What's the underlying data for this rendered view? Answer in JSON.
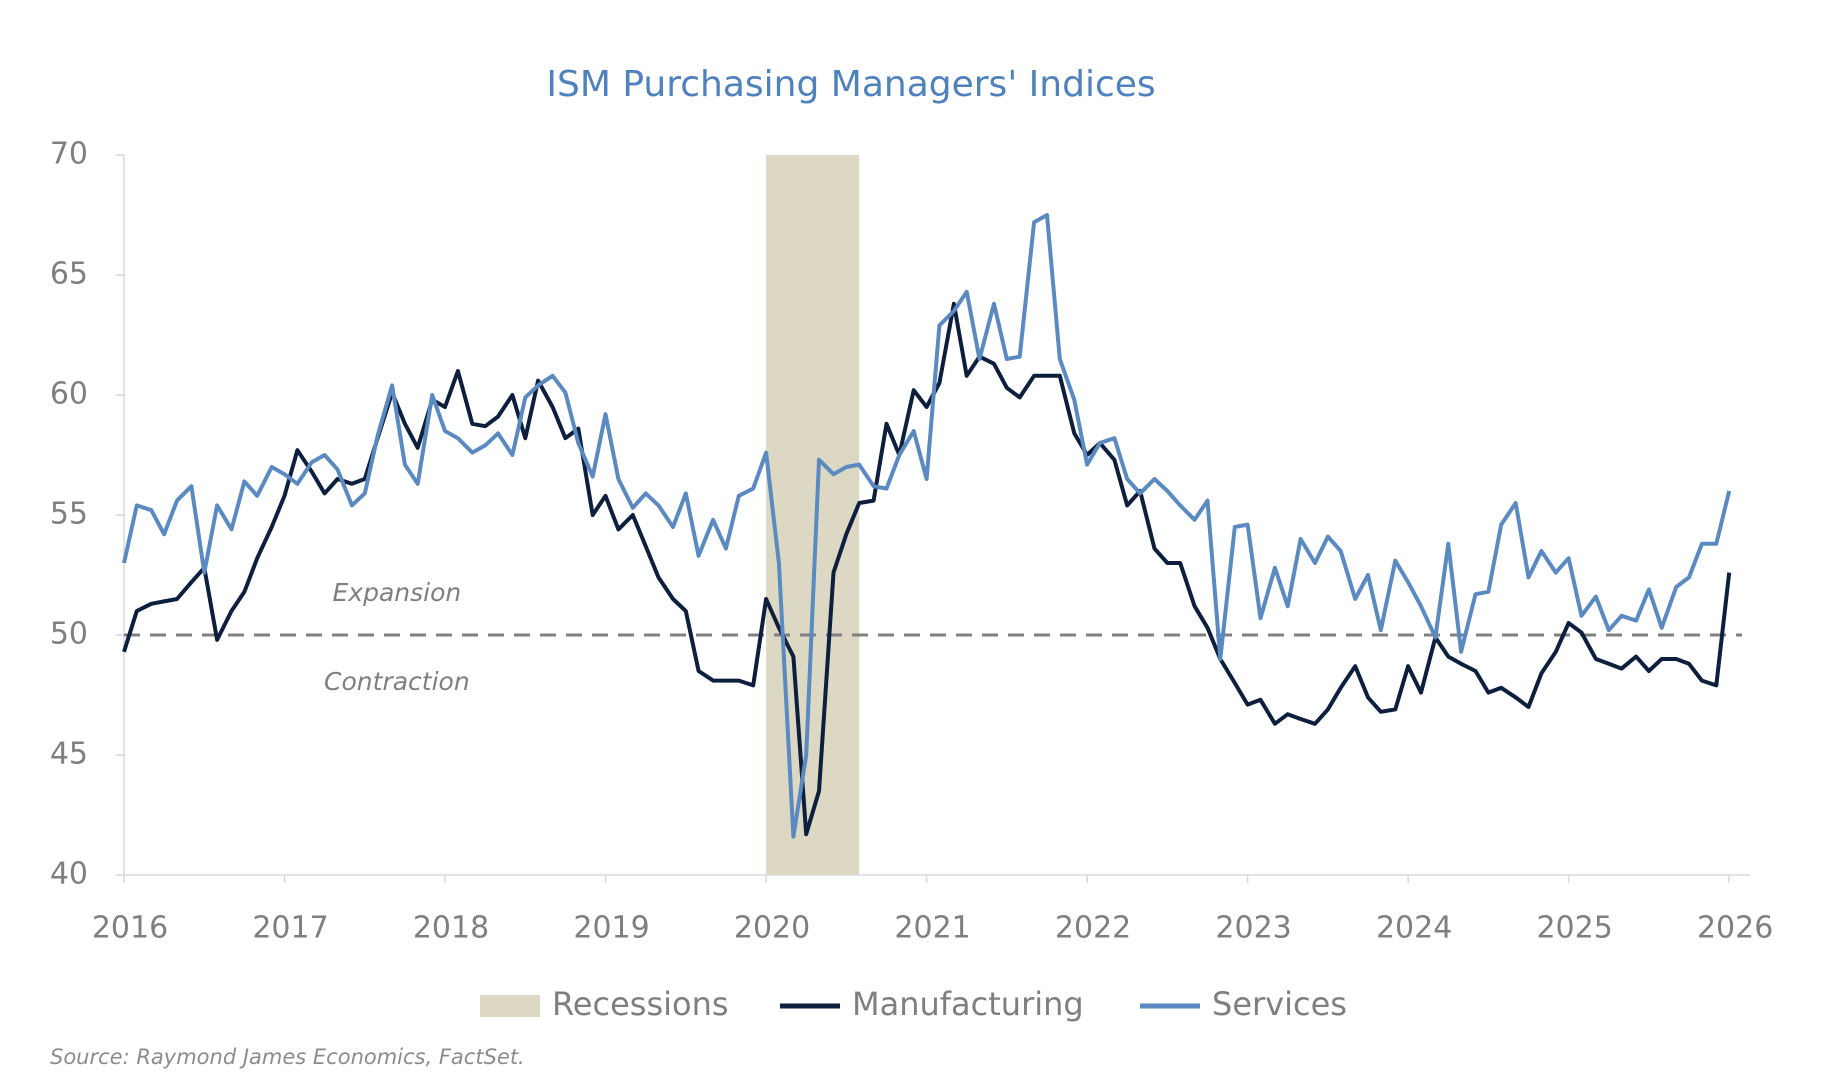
{
  "chart_data": {
    "type": "line",
    "title": "ISM Purchasing Managers' Indices",
    "source": "Source: Raymond James Economics, FactSet.",
    "annotations": [
      {
        "text": "Expansion",
        "x": 2017.7,
        "y": 51.7
      },
      {
        "text": "Contraction",
        "x": 2017.7,
        "y": 48.0
      }
    ],
    "reference_line": 50,
    "recessions": {
      "name": "Recessions",
      "color": "#ddd8c4",
      "periods": [
        [
          2020.0,
          2020.58
        ]
      ]
    },
    "xlim": [
      2016,
      2026.08
    ],
    "xticks": [
      2016,
      2017,
      2018,
      2019,
      2020,
      2021,
      2022,
      2023,
      2024,
      2025,
      2026
    ],
    "ylim": [
      40,
      70
    ],
    "yticks": [
      40,
      45,
      50,
      55,
      60,
      65,
      70
    ],
    "x": [
      2016,
      2016.08,
      2016.17,
      2016.25,
      2016.33,
      2016.42,
      2016.5,
      2016.58,
      2016.67,
      2016.75,
      2016.83,
      2016.92,
      2017,
      2017.08,
      2017.17,
      2017.25,
      2017.33,
      2017.42,
      2017.5,
      2017.58,
      2017.67,
      2017.75,
      2017.83,
      2017.92,
      2018,
      2018.08,
      2018.17,
      2018.25,
      2018.33,
      2018.42,
      2018.5,
      2018.58,
      2018.67,
      2018.75,
      2018.83,
      2018.92,
      2019,
      2019.08,
      2019.17,
      2019.25,
      2019.33,
      2019.42,
      2019.5,
      2019.58,
      2019.67,
      2019.75,
      2019.83,
      2019.92,
      2020,
      2020.08,
      2020.17,
      2020.25,
      2020.33,
      2020.42,
      2020.5,
      2020.58,
      2020.67,
      2020.75,
      2020.83,
      2020.92,
      2021,
      2021.08,
      2021.17,
      2021.25,
      2021.33,
      2021.42,
      2021.5,
      2021.58,
      2021.67,
      2021.75,
      2021.83,
      2021.92,
      2022,
      2022.08,
      2022.17,
      2022.25,
      2022.33,
      2022.42,
      2022.5,
      2022.58,
      2022.67,
      2022.75,
      2022.83,
      2022.92,
      2023,
      2023.08,
      2023.17,
      2023.25,
      2023.33,
      2023.42,
      2023.5,
      2023.58,
      2023.67,
      2023.75,
      2023.83,
      2023.92,
      2024,
      2024.08,
      2024.17,
      2024.25,
      2024.33,
      2024.42,
      2024.5,
      2024.58,
      2024.67,
      2024.75,
      2024.83,
      2024.92,
      2025,
      2025.08,
      2025.17,
      2025.25,
      2025.33,
      2025.42,
      2025.5,
      2025.58,
      2025.67,
      2025.75,
      2025.83,
      2025.92,
      2026
    ],
    "series": [
      {
        "name": "Manufacturing",
        "color": "#0d1f3c",
        "values": [
          49.3,
          51.0,
          51.3,
          51.4,
          51.5,
          52.2,
          52.8,
          49.8,
          51.0,
          51.8,
          53.2,
          54.5,
          55.8,
          57.7,
          56.8,
          55.9,
          56.5,
          56.3,
          56.5,
          58.2,
          60.1,
          58.8,
          57.8,
          59.8,
          59.5,
          61.0,
          58.8,
          58.7,
          59.1,
          60.0,
          58.2,
          60.6,
          59.5,
          58.2,
          58.6,
          55.0,
          55.8,
          54.4,
          55.0,
          53.7,
          52.4,
          51.5,
          51.0,
          48.5,
          48.1,
          48.1,
          48.1,
          47.9,
          51.5,
          50.3,
          49.1,
          41.7,
          43.5,
          52.6,
          54.2,
          55.5,
          55.6,
          58.8,
          57.5,
          60.2,
          59.5,
          60.5,
          63.8,
          60.8,
          61.6,
          61.3,
          60.3,
          59.9,
          60.8,
          60.8,
          60.8,
          58.4,
          57.5,
          58.0,
          57.3,
          55.4,
          56.0,
          53.6,
          53.0,
          53.0,
          51.2,
          50.3,
          49.0,
          48.0,
          47.1,
          47.3,
          46.3,
          46.7,
          46.5,
          46.3,
          46.9,
          47.8,
          48.7,
          47.4,
          46.8,
          46.9,
          48.7,
          47.6,
          49.9,
          49.1,
          48.8,
          48.5,
          47.6,
          47.8,
          47.4,
          47.0,
          48.4,
          49.3,
          50.5,
          50.1,
          49.0,
          48.8,
          48.6,
          49.1,
          48.5,
          49.0,
          49.0,
          48.8,
          48.1,
          47.9,
          52.6
        ]
      },
      {
        "name": "Services",
        "color": "#5b8ac0",
        "values": [
          53.0,
          55.4,
          55.2,
          54.2,
          55.6,
          56.2,
          52.6,
          55.4,
          54.4,
          56.4,
          55.8,
          57.0,
          56.7,
          56.3,
          57.2,
          57.5,
          56.9,
          55.4,
          55.9,
          58.3,
          60.4,
          57.1,
          56.3,
          60.0,
          58.5,
          58.2,
          57.6,
          57.9,
          58.4,
          57.5,
          59.9,
          60.4,
          60.8,
          60.1,
          58.0,
          56.6,
          59.2,
          56.5,
          55.3,
          55.9,
          55.4,
          54.5,
          55.9,
          53.3,
          54.8,
          53.6,
          55.8,
          56.1,
          57.6,
          53.0,
          41.6,
          45.0,
          57.3,
          56.7,
          57.0,
          57.1,
          56.2,
          56.1,
          57.5,
          58.5,
          56.5,
          62.9,
          63.5,
          64.3,
          61.5,
          63.8,
          61.5,
          61.6,
          67.2,
          67.5,
          61.5,
          59.8,
          57.1,
          58.0,
          58.2,
          56.5,
          55.9,
          56.5,
          56.0,
          55.4,
          54.8,
          55.6,
          49.0,
          54.5,
          54.6,
          50.7,
          52.8,
          51.2,
          54.0,
          53.0,
          54.1,
          53.5,
          51.5,
          52.5,
          50.2,
          53.1,
          52.2,
          51.2,
          49.9,
          53.8,
          49.3,
          51.7,
          51.8,
          54.6,
          55.5,
          52.4,
          53.5,
          52.6,
          53.2,
          50.8,
          51.6,
          50.2,
          50.8,
          50.6,
          51.9,
          50.3,
          52.0,
          52.4,
          53.8,
          53.8,
          56.0
        ]
      }
    ]
  }
}
